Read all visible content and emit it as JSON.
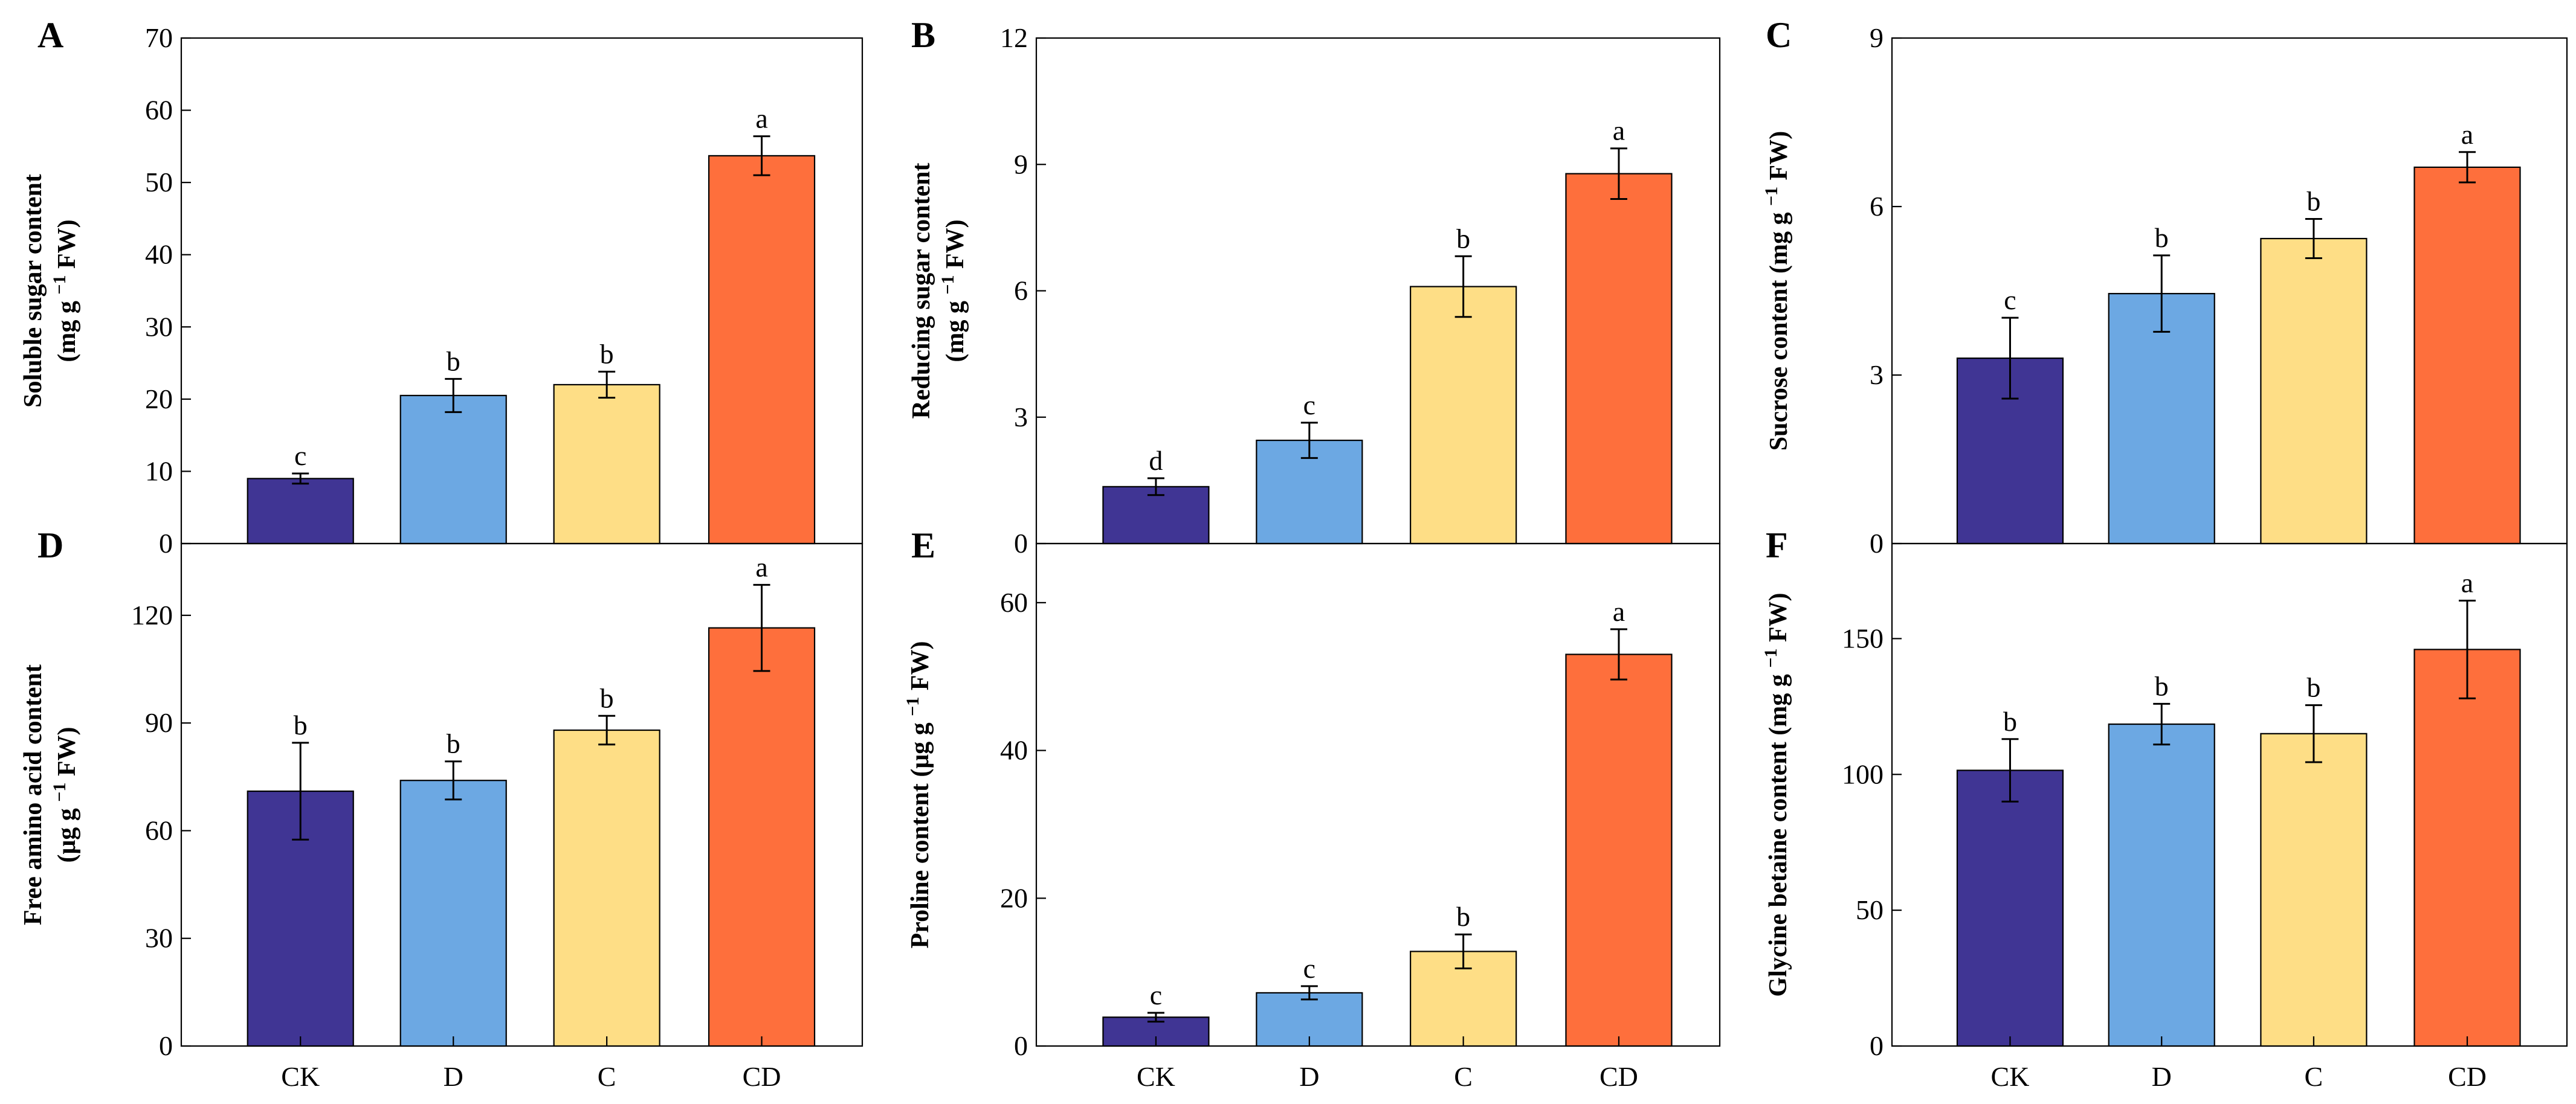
{
  "colors": {
    "CK": "#403594",
    "D": "#6ca8e3",
    "C": "#fede86",
    "CD": "#fe6f3c"
  },
  "chart_data": [
    {
      "id": "A",
      "type": "bar",
      "panel_label": "A",
      "ylabel_lines": [
        "Soluble sugar content",
        "(mg g",
        "FW)"
      ],
      "ylabel_sup": "−1",
      "categories": [
        "CK",
        "D",
        "C",
        "CD"
      ],
      "values": [
        9,
        20.5,
        22,
        53.7
      ],
      "errors": [
        0.7,
        2.3,
        1.8,
        2.7
      ],
      "letters": [
        "c",
        "b",
        "b",
        "a"
      ],
      "ylim": [
        0,
        70
      ],
      "yticks": [
        0,
        10,
        20,
        30,
        40,
        50,
        60,
        70
      ]
    },
    {
      "id": "B",
      "type": "bar",
      "panel_label": "B",
      "ylabel_lines": [
        "Reducing sugar content",
        "(mg g",
        "FW)"
      ],
      "ylabel_sup": "−1",
      "categories": [
        "CK",
        "D",
        "C",
        "CD"
      ],
      "values": [
        1.35,
        2.45,
        6.1,
        8.78
      ],
      "errors": [
        0.2,
        0.42,
        0.72,
        0.6
      ],
      "letters": [
        "d",
        "c",
        "b",
        "a"
      ],
      "ylim": [
        0,
        12
      ],
      "yticks": [
        0,
        3,
        6,
        9,
        12
      ]
    },
    {
      "id": "C",
      "type": "bar",
      "panel_label": "C",
      "ylabel_lines": [
        "Sucrose content (mg g",
        "FW)"
      ],
      "ylabel_sup": "−1",
      "categories": [
        "CK",
        "D",
        "C",
        "CD"
      ],
      "values": [
        3.3,
        4.45,
        5.43,
        6.7
      ],
      "errors": [
        0.72,
        0.68,
        0.35,
        0.27
      ],
      "letters": [
        "c",
        "b",
        "b",
        "a"
      ],
      "ylim": [
        0,
        9
      ],
      "yticks": [
        0,
        3,
        6,
        9
      ]
    },
    {
      "id": "D",
      "type": "bar",
      "panel_label": "D",
      "ylabel_lines": [
        "Free amino acid content",
        "(μg g",
        "FW)"
      ],
      "ylabel_sup": "−1",
      "categories": [
        "CK",
        "D",
        "C",
        "CD"
      ],
      "values": [
        71,
        74,
        88,
        116.5
      ],
      "errors": [
        13.5,
        5.3,
        4,
        12
      ],
      "letters": [
        "b",
        "b",
        "b",
        "a"
      ],
      "ylim": [
        0,
        140
      ],
      "yticks": [
        0,
        30,
        60,
        90,
        120
      ]
    },
    {
      "id": "E",
      "type": "bar",
      "panel_label": "E",
      "ylabel_lines": [
        "Proline content (μg g",
        "FW)"
      ],
      "ylabel_sup": "−1",
      "categories": [
        "CK",
        "D",
        "C",
        "CD"
      ],
      "values": [
        3.9,
        7.2,
        12.8,
        53
      ],
      "errors": [
        0.6,
        0.9,
        2.3,
        3.4
      ],
      "letters": [
        "c",
        "c",
        "b",
        "a"
      ],
      "ylim": [
        0,
        68
      ],
      "yticks": [
        0,
        20,
        40,
        60
      ]
    },
    {
      "id": "F",
      "type": "bar",
      "panel_label": "F",
      "ylabel_lines": [
        "Glycine betaine content (mg g",
        "FW)"
      ],
      "ylabel_sup": "−1",
      "categories": [
        "CK",
        "D",
        "C",
        "CD"
      ],
      "values": [
        101.5,
        118.5,
        115,
        146
      ],
      "errors": [
        11.5,
        7.5,
        10.5,
        18
      ],
      "letters": [
        "b",
        "b",
        "b",
        "a"
      ],
      "ylim": [
        0,
        185
      ],
      "yticks": [
        0,
        50,
        100,
        150
      ]
    }
  ]
}
